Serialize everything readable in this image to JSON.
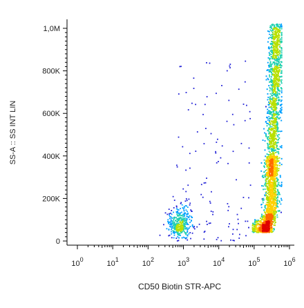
{
  "chart_data": {
    "type": "scatter",
    "subtype": "flow-cytometry-density-dot-plot",
    "xlabel": "CD50 Biotin STR-APC",
    "ylabel": "SS-A :: SS INT LIN",
    "x_scale": "log",
    "y_scale": "linear",
    "xlim": [
      1,
      1000000
    ],
    "ylim": [
      0,
      1050000
    ],
    "x_ticks": [
      {
        "base": "10",
        "exp": "0",
        "value": 1
      },
      {
        "base": "10",
        "exp": "1",
        "value": 10
      },
      {
        "base": "10",
        "exp": "2",
        "value": 100
      },
      {
        "base": "10",
        "exp": "3",
        "value": 1000
      },
      {
        "base": "10",
        "exp": "4",
        "value": 10000
      },
      {
        "base": "10",
        "exp": "5",
        "value": 100000
      },
      {
        "base": "10",
        "exp": "6",
        "value": 1000000
      }
    ],
    "y_ticks": [
      {
        "label": "0",
        "value": 0
      },
      {
        "label": "200K",
        "value": 200000
      },
      {
        "label": "400K",
        "value": 400000
      },
      {
        "label": "600K",
        "value": 600000
      },
      {
        "label": "800K",
        "value": 800000
      },
      {
        "label": "1,0M",
        "value": 1000000
      }
    ],
    "grid": false,
    "legend": "none",
    "colormap": [
      "#1f1fd6",
      "#00a0ff",
      "#20d0b0",
      "#b8e000",
      "#ffd000",
      "#ff6a00",
      "#e00000"
    ],
    "populations": [
      {
        "description": "main positive population (dense column)",
        "x_range_log10": [
          4.9,
          5.75
        ],
        "y_range": [
          40000,
          1020000
        ],
        "x_peak": 150000,
        "y_peak": 70000,
        "weight": 0.88
      },
      {
        "description": "dim negative cluster",
        "x_center": 800,
        "y_center": 80000,
        "x_range_log10": [
          2.4,
          3.3
        ],
        "y_range": [
          20000,
          200000
        ],
        "weight": 0.08
      },
      {
        "description": "sparse scattered events",
        "x_range_log10": [
          2.8,
          4.9
        ],
        "y_range": [
          0,
          850000
        ],
        "weight": 0.04
      }
    ]
  }
}
